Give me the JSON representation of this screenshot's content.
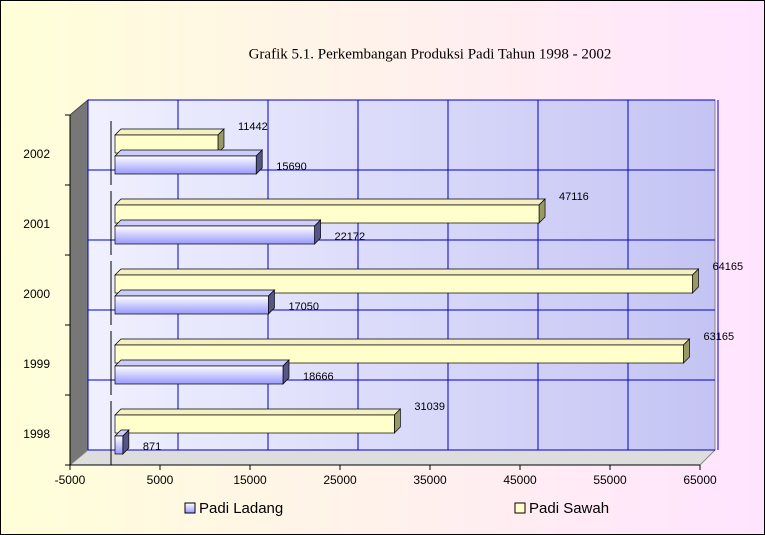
{
  "chart_data": {
    "type": "bar",
    "orientation": "horizontal",
    "title": "Grafik 5.1. Perkembangan Produksi Padi Tahun 1998 - 2002",
    "categories": [
      "1998",
      "1999",
      "2000",
      "2001",
      "2002"
    ],
    "series": [
      {
        "name": "Padi Ladang",
        "color": "#9999ff",
        "values": [
          871,
          18666,
          17050,
          22172,
          15690
        ]
      },
      {
        "name": "Padi Sawah",
        "color": "#ffffcc",
        "values": [
          31039,
          63165,
          64165,
          47116,
          11442
        ]
      }
    ],
    "xlim": [
      -5000,
      65000
    ],
    "xticks": [
      -5000,
      5000,
      15000,
      25000,
      35000,
      45000,
      55000,
      65000
    ],
    "grid": true,
    "legend": "bottom"
  }
}
